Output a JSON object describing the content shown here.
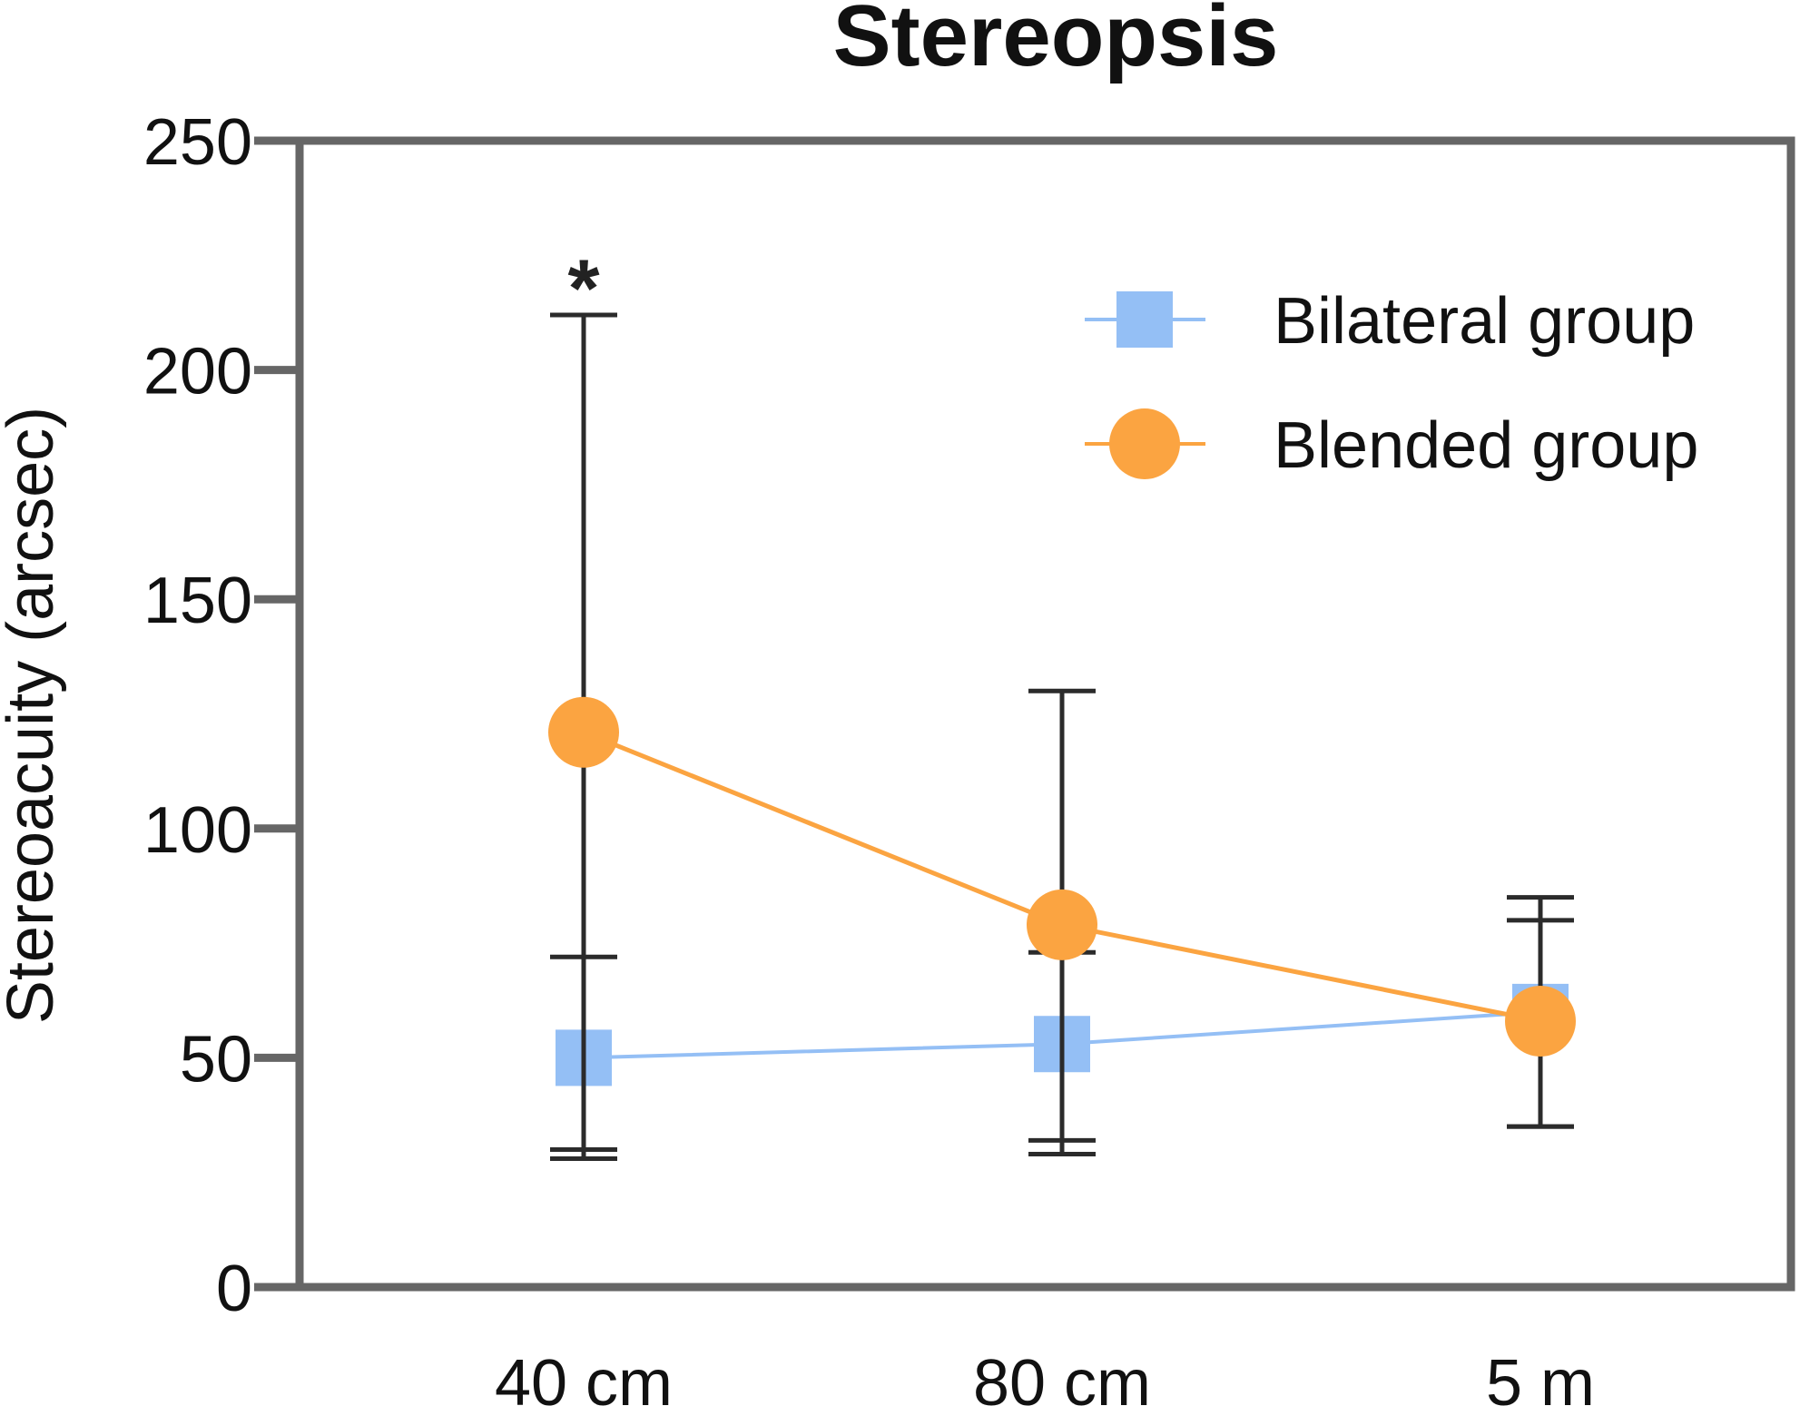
{
  "chart_data": {
    "type": "line",
    "title": "Stereopsis",
    "xlabel": "",
    "ylabel": "Stereoacuity (arcsec)",
    "categories": [
      "40 cm",
      "80 cm",
      "5 m"
    ],
    "ylim": [
      0,
      250
    ],
    "yticks": [
      0,
      50,
      100,
      150,
      200,
      250
    ],
    "grid": false,
    "legend_position": "top-right",
    "series": [
      {
        "name": "Bilateral group",
        "marker": "square",
        "color": "#94bff5",
        "values": [
          50,
          53,
          60
        ],
        "err_low": [
          30,
          32,
          35
        ],
        "err_high": [
          72,
          73,
          85
        ]
      },
      {
        "name": "Blended group",
        "marker": "circle",
        "color": "#fba441",
        "values": [
          121,
          79,
          58
        ],
        "err_low": [
          28,
          29,
          35
        ],
        "err_high": [
          212,
          130,
          80
        ]
      }
    ],
    "annotations": [
      {
        "text": "*",
        "category": "40 cm",
        "y": 222
      }
    ],
    "colors": {
      "axis": "#666666",
      "errorbar": "#2b2b2b",
      "text": "#111111"
    }
  }
}
